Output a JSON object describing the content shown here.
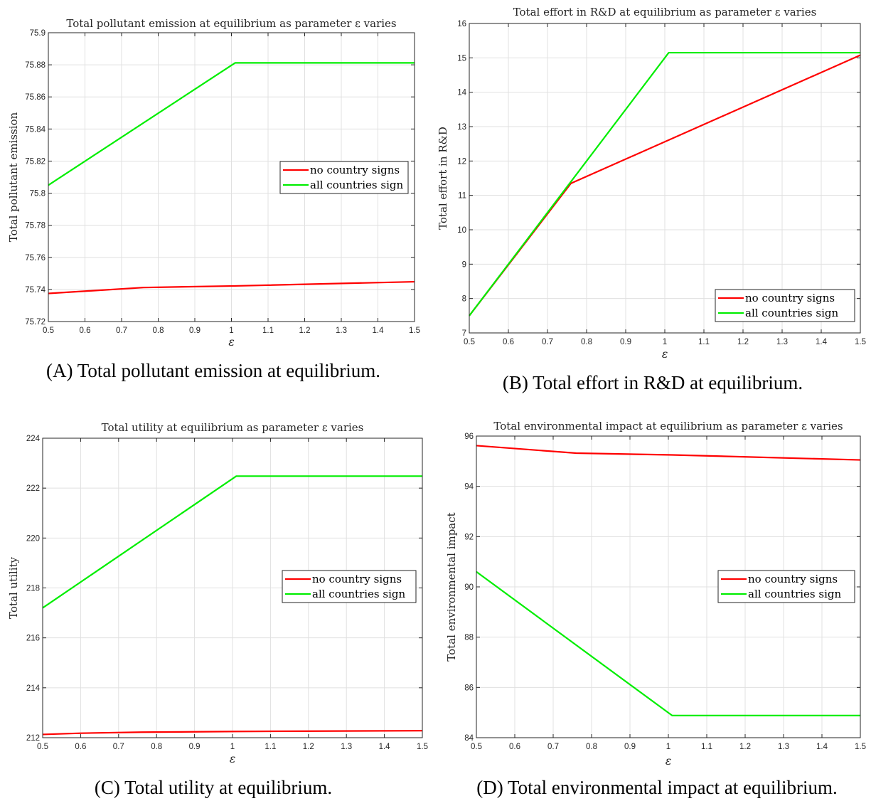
{
  "colors": {
    "no_country": "#ff0000",
    "all_countries": "#00ee00"
  },
  "chart_data": [
    {
      "type": "line",
      "panel": "A",
      "title": "Total pollutant emission at equilibrium as parameter ε varies",
      "xlabel": "ε",
      "ylabel": "Total pollutant emission",
      "caption": "(A) Total pollutant emission at equilibrium.",
      "xlim": [
        0.5,
        1.5
      ],
      "ylim": [
        75.72,
        75.9
      ],
      "xticks": [
        0.5,
        0.6,
        0.7,
        0.8,
        0.9,
        1,
        1.1,
        1.2,
        1.3,
        1.4,
        1.5
      ],
      "xticklabels": [
        "0.5",
        "0.6",
        "0.7",
        "0.8",
        "0.9",
        "1",
        "1.1",
        "1.2",
        "1.3",
        "1.4",
        "1.5"
      ],
      "yticks": [
        75.72,
        75.74,
        75.76,
        75.78,
        75.8,
        75.82,
        75.84,
        75.86,
        75.88,
        75.9
      ],
      "yticklabels": [
        "75.72",
        "75.74",
        "75.76",
        "75.78",
        "75.8",
        "75.82",
        "75.84",
        "75.86",
        "75.88",
        "75.9"
      ],
      "grid": true,
      "legend_position": "center-right",
      "series": [
        {
          "name": "no country signs",
          "color": "#ff0000",
          "x": [
            0.5,
            0.76,
            1.01,
            1.5
          ],
          "y": [
            75.7375,
            75.7412,
            75.7422,
            75.7448
          ]
        },
        {
          "name": "all countries sign",
          "color": "#00ee00",
          "x": [
            0.5,
            1.01,
            1.5
          ],
          "y": [
            75.805,
            75.8812,
            75.8812
          ]
        }
      ]
    },
    {
      "type": "line",
      "panel": "B",
      "title": "Total effort in R&D at equilibrium as parameter ε varies",
      "xlabel": "ε",
      "ylabel": "Total effort in R&D",
      "caption": "(B) Total effort in R&D at equilibrium.",
      "xlim": [
        0.5,
        1.5
      ],
      "ylim": [
        7,
        16
      ],
      "xticks": [
        0.5,
        0.6,
        0.7,
        0.8,
        0.9,
        1,
        1.1,
        1.2,
        1.3,
        1.4,
        1.5
      ],
      "xticklabels": [
        "0.5",
        "0.6",
        "0.7",
        "0.8",
        "0.9",
        "1",
        "1.1",
        "1.2",
        "1.3",
        "1.4",
        "1.5"
      ],
      "yticks": [
        7,
        8,
        9,
        10,
        11,
        12,
        13,
        14,
        15,
        16
      ],
      "yticklabels": [
        "7",
        "8",
        "9",
        "10",
        "11",
        "12",
        "13",
        "14",
        "15",
        "16"
      ],
      "grid": true,
      "legend_position": "bottom-right",
      "series": [
        {
          "name": "no country signs",
          "color": "#ff0000",
          "x": [
            0.5,
            0.76,
            1.5
          ],
          "y": [
            7.5,
            11.35,
            15.08
          ]
        },
        {
          "name": "all countries sign",
          "color": "#00ee00",
          "x": [
            0.5,
            1.01,
            1.5
          ],
          "y": [
            7.5,
            15.15,
            15.15
          ]
        }
      ]
    },
    {
      "type": "line",
      "panel": "C",
      "title": "Total utility at equilibrium as parameter ε varies",
      "xlabel": "ε",
      "ylabel": "Total utility",
      "caption": "(C) Total utility at equilibrium.",
      "xlim": [
        0.5,
        1.5
      ],
      "ylim": [
        212,
        224
      ],
      "xticks": [
        0.5,
        0.6,
        0.7,
        0.8,
        0.9,
        1,
        1.1,
        1.2,
        1.3,
        1.4,
        1.5
      ],
      "xticklabels": [
        "0.5",
        "0.6",
        "0.7",
        "0.8",
        "0.9",
        "1",
        "1.1",
        "1.2",
        "1.3",
        "1.4",
        "1.5"
      ],
      "yticks": [
        212,
        214,
        216,
        218,
        220,
        222,
        224
      ],
      "yticklabels": [
        "212",
        "214",
        "216",
        "218",
        "220",
        "222",
        "224"
      ],
      "grid": true,
      "legend_position": "center-right",
      "series": [
        {
          "name": "no country signs",
          "color": "#ff0000",
          "x": [
            0.5,
            0.6,
            0.76,
            1.01,
            1.5
          ],
          "y": [
            212.13,
            212.18,
            212.22,
            212.25,
            212.28
          ]
        },
        {
          "name": "all countries sign",
          "color": "#00ee00",
          "x": [
            0.5,
            1.01,
            1.5
          ],
          "y": [
            217.2,
            222.48,
            222.48
          ]
        }
      ]
    },
    {
      "type": "line",
      "panel": "D",
      "title": "Total environmental impact at equilibrium as parameter ε varies",
      "xlabel": "ε",
      "ylabel": "Total environmental impact",
      "caption": "(D) Total environmental impact at equilibrium.",
      "xlim": [
        0.5,
        1.5
      ],
      "ylim": [
        84,
        96
      ],
      "xticks": [
        0.5,
        0.6,
        0.7,
        0.8,
        0.9,
        1,
        1.1,
        1.2,
        1.3,
        1.4,
        1.5
      ],
      "xticklabels": [
        "0.5",
        "0.6",
        "0.7",
        "0.8",
        "0.9",
        "1",
        "1.1",
        "1.2",
        "1.3",
        "1.4",
        "1.5"
      ],
      "yticks": [
        84,
        86,
        88,
        90,
        92,
        94,
        96
      ],
      "yticklabels": [
        "84",
        "86",
        "88",
        "90",
        "92",
        "94",
        "96"
      ],
      "grid": true,
      "legend_position": "center-right",
      "series": [
        {
          "name": "no country signs",
          "color": "#ff0000",
          "x": [
            0.5,
            0.76,
            1.01,
            1.5
          ],
          "y": [
            95.62,
            95.32,
            95.25,
            95.05
          ]
        },
        {
          "name": "all countries sign",
          "color": "#00ee00",
          "x": [
            0.5,
            1.01,
            1.5
          ],
          "y": [
            90.6,
            84.88,
            84.88
          ]
        }
      ]
    }
  ]
}
